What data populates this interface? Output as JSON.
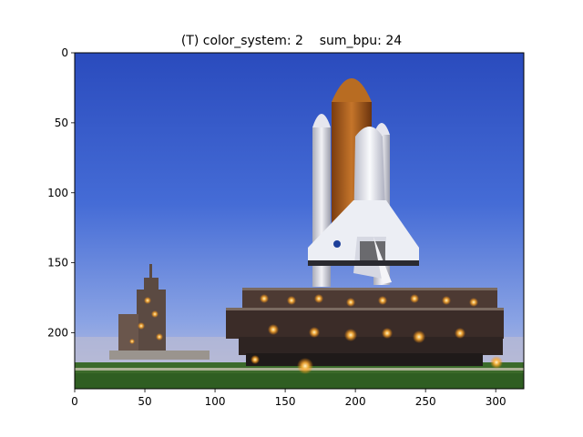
{
  "figure": {
    "title": "(T) color_system: 2    sum_bpu: 24",
    "image_description_hidden": ""
  },
  "axes": {
    "x_ticks": [
      "0",
      "50",
      "100",
      "150",
      "200",
      "250",
      "300"
    ],
    "y_ticks": [
      "0",
      "50",
      "100",
      "150",
      "200"
    ],
    "xlim": [
      0,
      320
    ],
    "ylim": [
      240,
      0
    ]
  },
  "colors": {
    "sky_top": "#2c4fc0",
    "sky_mid": "#4a6fd8",
    "sky_low": "#8fa7e6",
    "horizon": "#c9c6d9",
    "grass": "#3d6b2a",
    "tank_orange": "#b5651d",
    "booster_white": "#e8e8ee",
    "orbiter_white": "#f1f2f6",
    "crawler_dark": "#3a2c28",
    "lights": "#ffb23a"
  }
}
